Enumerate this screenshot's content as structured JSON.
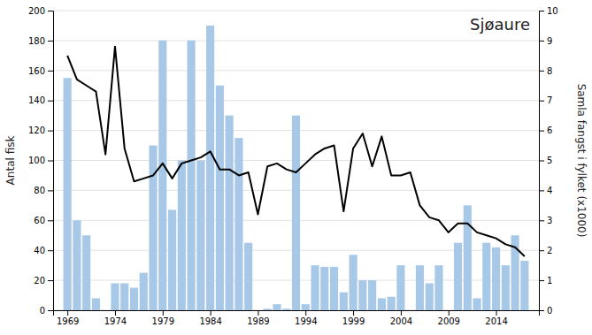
{
  "chart_data": {
    "type": "bar",
    "title": "Sjøaure",
    "x": [
      1969,
      1970,
      1971,
      1972,
      1973,
      1974,
      1975,
      1976,
      1977,
      1978,
      1979,
      1980,
      1981,
      1982,
      1983,
      1984,
      1985,
      1986,
      1987,
      1988,
      1989,
      1990,
      1991,
      1992,
      1993,
      1994,
      1995,
      1996,
      1997,
      1998,
      1999,
      2000,
      2001,
      2002,
      2003,
      2004,
      2005,
      2006,
      2007,
      2008,
      2009,
      2010,
      2011,
      2012,
      2013,
      2014,
      2015,
      2016,
      2017
    ],
    "series": [
      {
        "type": "bar",
        "color": "#a8c8e8",
        "values": [
          155,
          60,
          50,
          8,
          0,
          18,
          18,
          15,
          25,
          110,
          180,
          67,
          100,
          180,
          100,
          190,
          150,
          130,
          115,
          45,
          0,
          1,
          4,
          1,
          130,
          4,
          30,
          29,
          29,
          12,
          37,
          20,
          20,
          8,
          9,
          30,
          0,
          30,
          18,
          30,
          0,
          45,
          70,
          8,
          45,
          42,
          30,
          50,
          33
        ]
      },
      {
        "type": "line",
        "color": "#000000",
        "axis": "y2",
        "values": [
          8.5,
          7.7,
          7.5,
          7.3,
          5.2,
          8.8,
          5.4,
          4.3,
          4.4,
          4.5,
          4.9,
          4.4,
          4.9,
          5.0,
          5.1,
          5.3,
          4.7,
          4.7,
          4.5,
          4.6,
          3.2,
          4.8,
          4.9,
          4.7,
          4.6,
          4.9,
          5.2,
          5.4,
          5.5,
          3.3,
          5.4,
          5.9,
          4.8,
          5.8,
          4.5,
          4.5,
          4.6,
          3.5,
          3.1,
          3.0,
          2.6,
          2.9,
          2.9,
          2.6,
          2.5,
          2.4,
          2.2,
          2.1,
          1.8
        ]
      }
    ],
    "ylabel": "Antal fisk",
    "y2label": "Samla fangst i fylket (x1000)",
    "xlim": [
      1967.5,
      2018.5
    ],
    "xticks": [
      1969,
      1974,
      1979,
      1984,
      1989,
      1994,
      1999,
      2004,
      2009,
      2014
    ],
    "ylim": [
      0,
      200
    ],
    "yticks": [
      0,
      20,
      40,
      60,
      80,
      100,
      120,
      140,
      160,
      180,
      200
    ],
    "y2lim": [
      0,
      10
    ],
    "y2ticks": [
      0,
      1,
      2,
      3,
      4,
      5,
      6,
      7,
      8,
      9,
      10
    ],
    "grid": true
  }
}
